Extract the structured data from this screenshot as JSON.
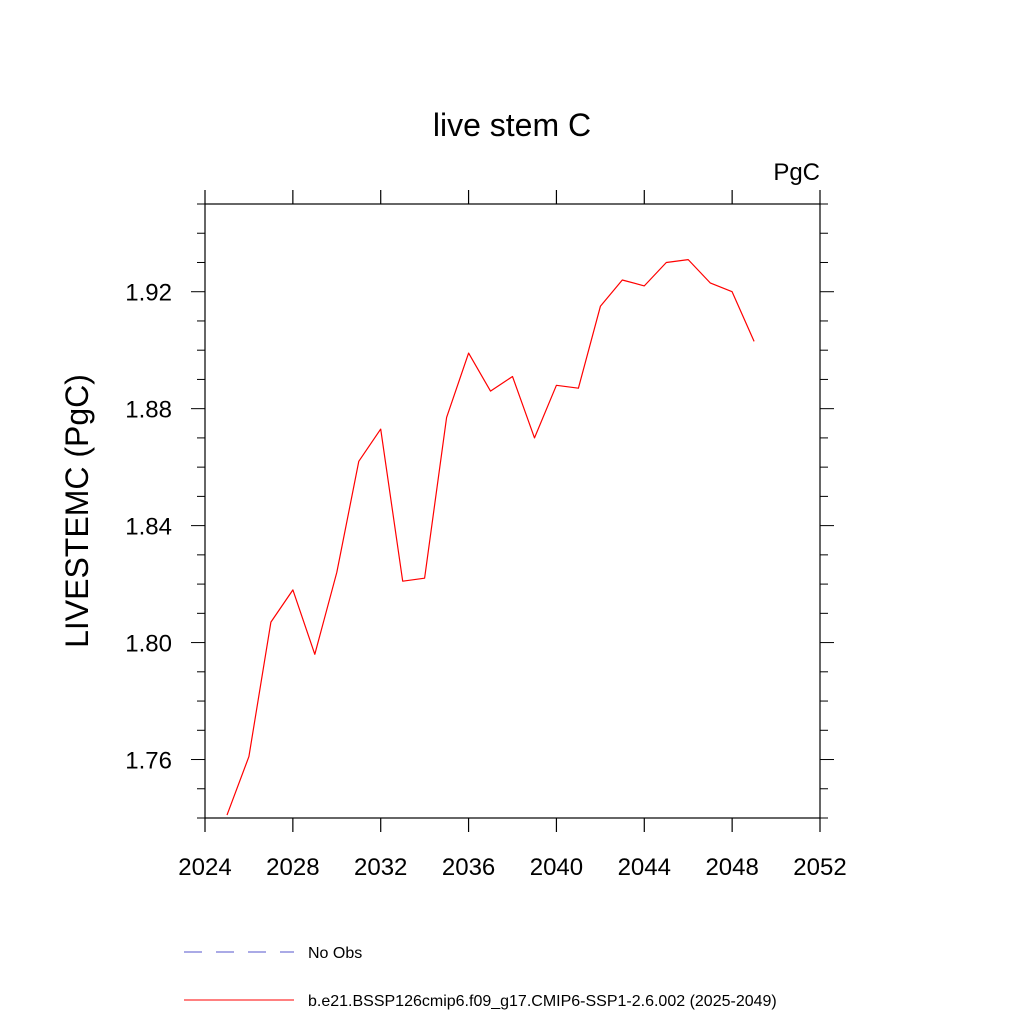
{
  "chart_data": {
    "type": "line",
    "title": "live stem C",
    "units_label": "PgC",
    "xlabel": "",
    "ylabel": "LIVESTEMC  (PgC)",
    "xlim": [
      2024,
      2052
    ],
    "ylim": [
      1.74,
      1.95
    ],
    "xticks": [
      2024,
      2028,
      2032,
      2036,
      2040,
      2044,
      2048,
      2052
    ],
    "xtick_labels": [
      "2024",
      "2028",
      "2032",
      "2036",
      "2040",
      "2044",
      "2048",
      "2052"
    ],
    "yticks": [
      1.76,
      1.8,
      1.84,
      1.88,
      1.92
    ],
    "ytick_labels": [
      "1.76",
      "1.80",
      "1.84",
      "1.88",
      "1.92"
    ],
    "grid": false,
    "series": [
      {
        "name": "b.e21.BSSP126cmip6.f09_g17.CMIP6-SSP1-2.6.002 (2025-2049)",
        "color": "#ff0000",
        "x": [
          2025,
          2026,
          2027,
          2028,
          2029,
          2030,
          2031,
          2032,
          2033,
          2034,
          2035,
          2036,
          2037,
          2038,
          2039,
          2040,
          2041,
          2042,
          2043,
          2044,
          2045,
          2046,
          2047,
          2048,
          2049
        ],
        "y": [
          1.741,
          1.761,
          1.807,
          1.818,
          1.796,
          1.824,
          1.862,
          1.873,
          1.821,
          1.822,
          1.877,
          1.899,
          1.886,
          1.891,
          1.87,
          1.888,
          1.887,
          1.915,
          1.924,
          1.922,
          1.93,
          1.931,
          1.923,
          1.92,
          1.903
        ]
      }
    ],
    "legend": {
      "placement": "bottom",
      "entries": [
        {
          "label": "No Obs",
          "color": "#5555cc",
          "style": "dashed"
        },
        {
          "label": "b.e21.BSSP126cmip6.f09_g17.CMIP6-SSP1-2.6.002 (2025-2049)",
          "color": "#ff0000",
          "style": "solid"
        }
      ]
    }
  }
}
